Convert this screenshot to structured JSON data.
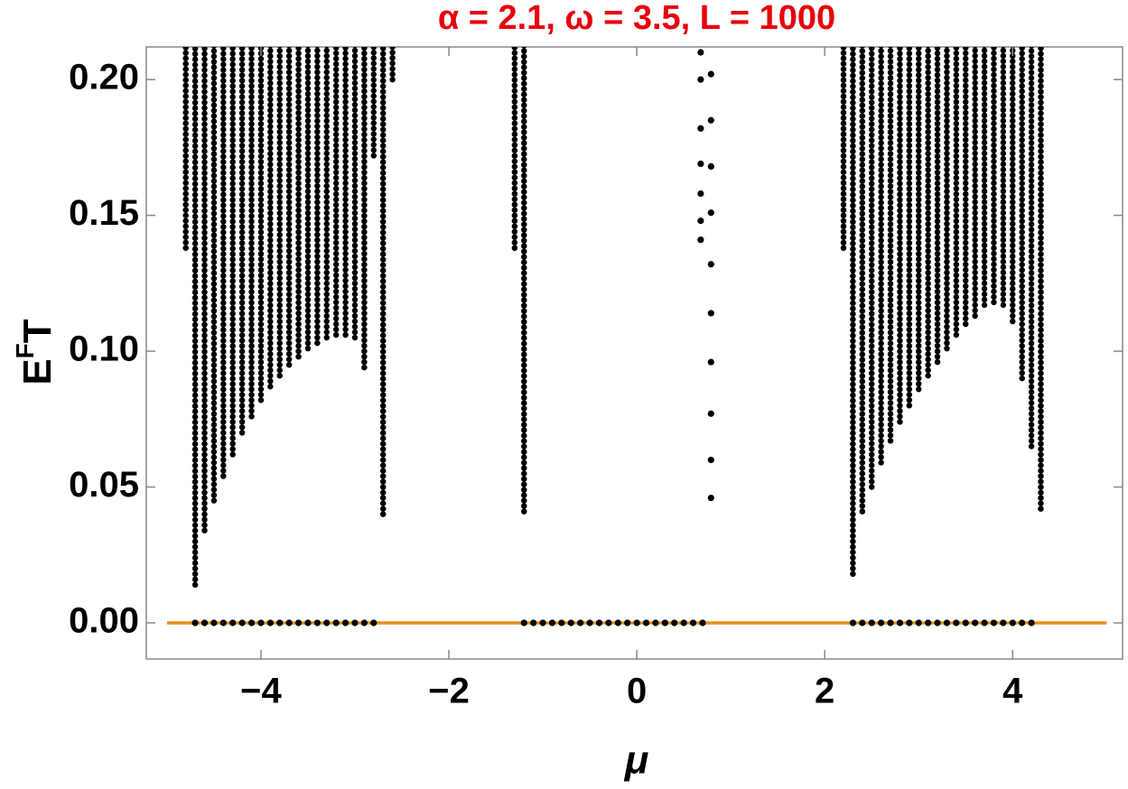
{
  "chart_data": {
    "type": "scatter",
    "title": "α = 2.1, ω = 3.5, L = 1000",
    "xlabel": "μ",
    "ylabel": {
      "base": "E",
      "sup": "F",
      "tail": "T"
    },
    "xlim": [
      -5.22,
      5.17
    ],
    "ylim": [
      -0.0133,
      0.212
    ],
    "xticks": [
      {
        "value": -4,
        "label": "−4"
      },
      {
        "value": -2,
        "label": "−2"
      },
      0,
      2,
      4
    ],
    "yticks": [
      {
        "value": 0,
        "label": "0.00"
      },
      {
        "value": 0.05,
        "label": "0.05"
      },
      {
        "value": 0.1,
        "label": "0.10"
      },
      {
        "value": 0.15,
        "label": "0.15"
      },
      {
        "value": 0.2,
        "label": "0.20"
      }
    ],
    "series": [
      {
        "mode": "line",
        "color": "#e8901e",
        "x": [
          -5,
          5
        ],
        "values": [
          0,
          0
        ]
      },
      {
        "mode": "columns",
        "color": "#000000",
        "x": [
          -4.8,
          -4.7,
          -4.6,
          -4.5,
          -4.4,
          -4.3,
          -4.2,
          -4.1,
          -4.0,
          -3.9,
          -3.8,
          -3.7,
          -3.6,
          -3.5,
          -3.4,
          -3.3,
          -3.2,
          -3.1,
          -3.0,
          -2.9,
          -2.8,
          -2.7,
          -2.6,
          -1.3,
          -1.2,
          2.2,
          2.3,
          2.4,
          2.5,
          2.6,
          2.7,
          2.8,
          2.9,
          3.0,
          3.1,
          3.2,
          3.3,
          3.4,
          3.5,
          3.6,
          3.7,
          3.8,
          3.9,
          4.0,
          4.1,
          4.2,
          4.3
        ],
        "values": [
          0.138,
          0.014,
          0.034,
          0.045,
          0.054,
          0.062,
          0.07,
          0.076,
          0.082,
          0.087,
          0.091,
          0.095,
          0.098,
          0.101,
          0.103,
          0.105,
          0.106,
          0.106,
          0.105,
          0.094,
          0.172,
          0.04,
          0.2,
          0.138,
          0.041,
          0.138,
          0.018,
          0.041,
          0.05,
          0.059,
          0.067,
          0.074,
          0.08,
          0.086,
          0.091,
          0.096,
          0.101,
          0.106,
          0.11,
          0.113,
          0.117,
          0.118,
          0.117,
          0.111,
          0.09,
          0.065,
          0.042
        ]
      },
      {
        "mode": "points",
        "color": "#000000",
        "x": [
          0.68,
          0.68,
          0.68,
          0.68,
          0.68,
          0.68,
          0.68,
          0.79,
          0.79,
          0.79,
          0.79,
          0.79,
          0.79,
          0.79,
          0.79,
          0.79,
          0.79
        ],
        "values": [
          0.141,
          0.148,
          0.158,
          0.169,
          0.182,
          0.2,
          0.21,
          0.046,
          0.06,
          0.077,
          0.096,
          0.114,
          0.132,
          0.151,
          0.168,
          0.185,
          0.202
        ]
      },
      {
        "mode": "points",
        "color": "#000000",
        "x": [
          -4.7,
          -4.6,
          -4.5,
          -4.4,
          -4.3,
          -4.2,
          -4.1,
          -4.0,
          -3.9,
          -3.8,
          -3.7,
          -3.6,
          -3.5,
          -3.4,
          -3.3,
          -3.2,
          -3.1,
          -3.0,
          -2.9,
          -2.8,
          -1.2,
          -1.1,
          -1.0,
          -0.9,
          -0.8,
          -0.7,
          -0.6,
          -0.5,
          -0.4,
          -0.3,
          -0.2,
          -0.1,
          0.0,
          0.1,
          0.2,
          0.3,
          0.4,
          0.5,
          0.6,
          0.7,
          2.3,
          2.4,
          2.5,
          2.6,
          2.7,
          2.8,
          2.9,
          3.0,
          3.1,
          3.2,
          3.3,
          3.4,
          3.5,
          3.6,
          3.7,
          3.8,
          3.9,
          4.0,
          4.1,
          4.2
        ],
        "values": [
          0,
          0,
          0,
          0,
          0,
          0,
          0,
          0,
          0,
          0,
          0,
          0,
          0,
          0,
          0,
          0,
          0,
          0,
          0,
          0,
          0,
          0,
          0,
          0,
          0,
          0,
          0,
          0,
          0,
          0,
          0,
          0,
          0,
          0,
          0,
          0,
          0,
          0,
          0,
          0,
          0,
          0,
          0,
          0,
          0,
          0,
          0,
          0,
          0,
          0,
          0,
          0,
          0,
          0,
          0,
          0,
          0,
          0,
          0,
          0
        ]
      }
    ]
  }
}
